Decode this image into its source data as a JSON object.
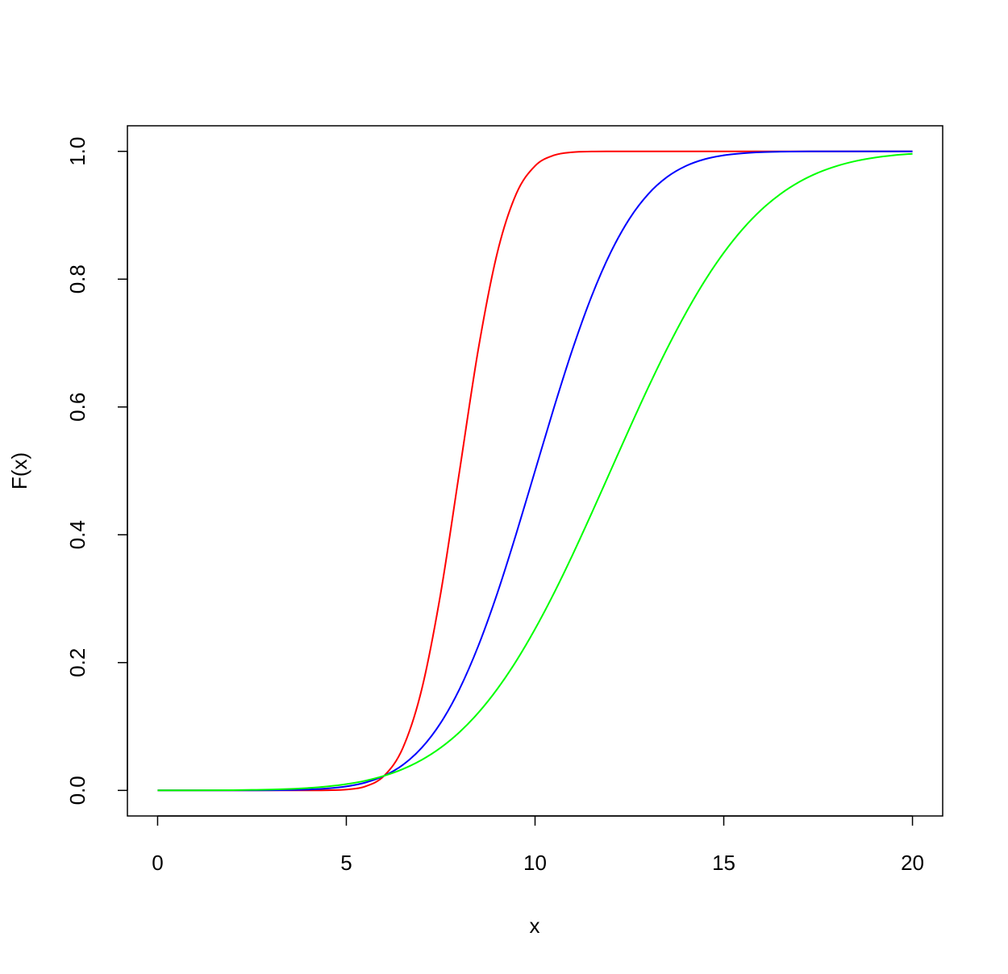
{
  "chart_data": {
    "type": "line",
    "xlabel": "x",
    "ylabel": "F(x)",
    "x": [
      0,
      0.5,
      1,
      1.5,
      2,
      2.5,
      3,
      3.5,
      4,
      4.5,
      5,
      5.5,
      6,
      6.5,
      7,
      7.5,
      8,
      8.5,
      9,
      9.5,
      10,
      10.5,
      11,
      11.5,
      12,
      12.5,
      13,
      13.5,
      14,
      14.5,
      15,
      15.5,
      16,
      16.5,
      17,
      17.5,
      18,
      18.5,
      19,
      19.5,
      20
    ],
    "series": [
      {
        "color": "#ff0000",
        "values": [
          0,
          0,
          0,
          0,
          0,
          0,
          0,
          0,
          0,
          0.0002,
          0.0013,
          0.0062,
          0.0228,
          0.0668,
          0.1587,
          0.3085,
          0.5,
          0.6915,
          0.8413,
          0.9332,
          0.9772,
          0.9938,
          0.9987,
          0.9998,
          1,
          1,
          1,
          1,
          1,
          1,
          1,
          1,
          1,
          1,
          1,
          1,
          1,
          1,
          1,
          1,
          1
        ]
      },
      {
        "color": "#0000ff",
        "values": [
          0,
          0,
          0,
          0,
          0,
          0.0001,
          0.0002,
          0.0006,
          0.0013,
          0.003,
          0.0062,
          0.0122,
          0.0228,
          0.0401,
          0.0668,
          0.1056,
          0.1587,
          0.2266,
          0.3085,
          0.4013,
          0.5,
          0.5987,
          0.6915,
          0.7734,
          0.8413,
          0.8944,
          0.9332,
          0.9599,
          0.9772,
          0.9878,
          0.9938,
          0.997,
          0.9987,
          0.9994,
          0.9998,
          0.9999,
          1,
          1,
          1,
          1,
          1
        ]
      },
      {
        "color": "#00ff00",
        "values": [
          0,
          0.0001,
          0.0001,
          0.0002,
          0.0004,
          0.0008,
          0.0013,
          0.0023,
          0.0038,
          0.0062,
          0.0098,
          0.0151,
          0.0228,
          0.0334,
          0.0478,
          0.0668,
          0.0912,
          0.1217,
          0.1587,
          0.2023,
          0.2525,
          0.3085,
          0.3694,
          0.4338,
          0.5,
          0.5662,
          0.6306,
          0.6915,
          0.7475,
          0.7977,
          0.8413,
          0.8783,
          0.9088,
          0.9332,
          0.9522,
          0.9666,
          0.9772,
          0.9849,
          0.9902,
          0.9938,
          0.9962
        ]
      }
    ],
    "xlim": [
      -0.8,
      20.8
    ],
    "ylim": [
      -0.04,
      1.04
    ],
    "xticks": [
      0,
      5,
      10,
      15,
      20
    ],
    "yticks": [
      {
        "value": 0,
        "label": "0.0"
      },
      0.2,
      0.4,
      0.6,
      0.8,
      {
        "value": 1,
        "label": "1.0"
      }
    ]
  }
}
